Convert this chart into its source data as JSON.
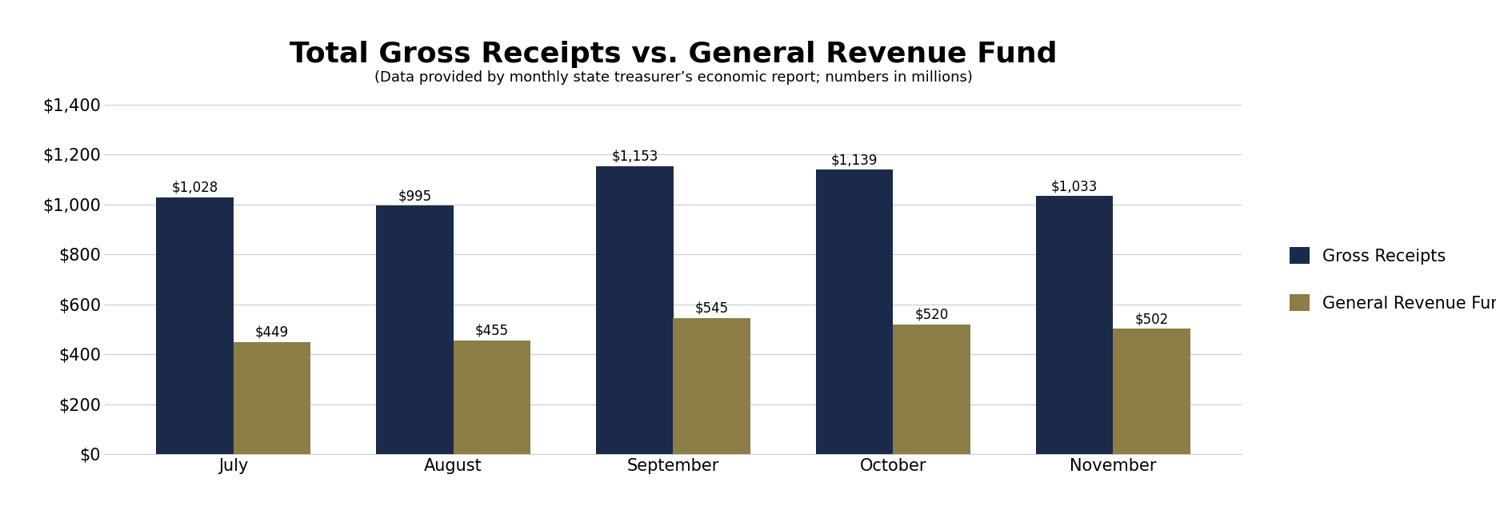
{
  "title": "Total Gross Receipts vs. General Revenue Fund",
  "subtitle": "(Data provided by monthly state treasurer’s economic report; numbers in millions)",
  "categories": [
    "July",
    "August",
    "September",
    "October",
    "November"
  ],
  "gross_receipts": [
    1028,
    995,
    1153,
    1139,
    1033
  ],
  "general_revenue": [
    449,
    455,
    545,
    520,
    502
  ],
  "bar_color_gross": "#1B2A4A",
  "bar_color_revenue": "#8B7D45",
  "background_color": "#FFFFFF",
  "ylim": [
    0,
    1400
  ],
  "yticks": [
    0,
    200,
    400,
    600,
    800,
    1000,
    1200,
    1400
  ],
  "legend_labels": [
    "Gross Receipts",
    "General Revenue Fund"
  ],
  "title_fontsize": 26,
  "subtitle_fontsize": 13,
  "tick_fontsize": 15,
  "label_fontsize": 12,
  "legend_fontsize": 15,
  "bar_width": 0.35,
  "figsize": [
    18.7,
    6.53
  ],
  "dpi": 100
}
